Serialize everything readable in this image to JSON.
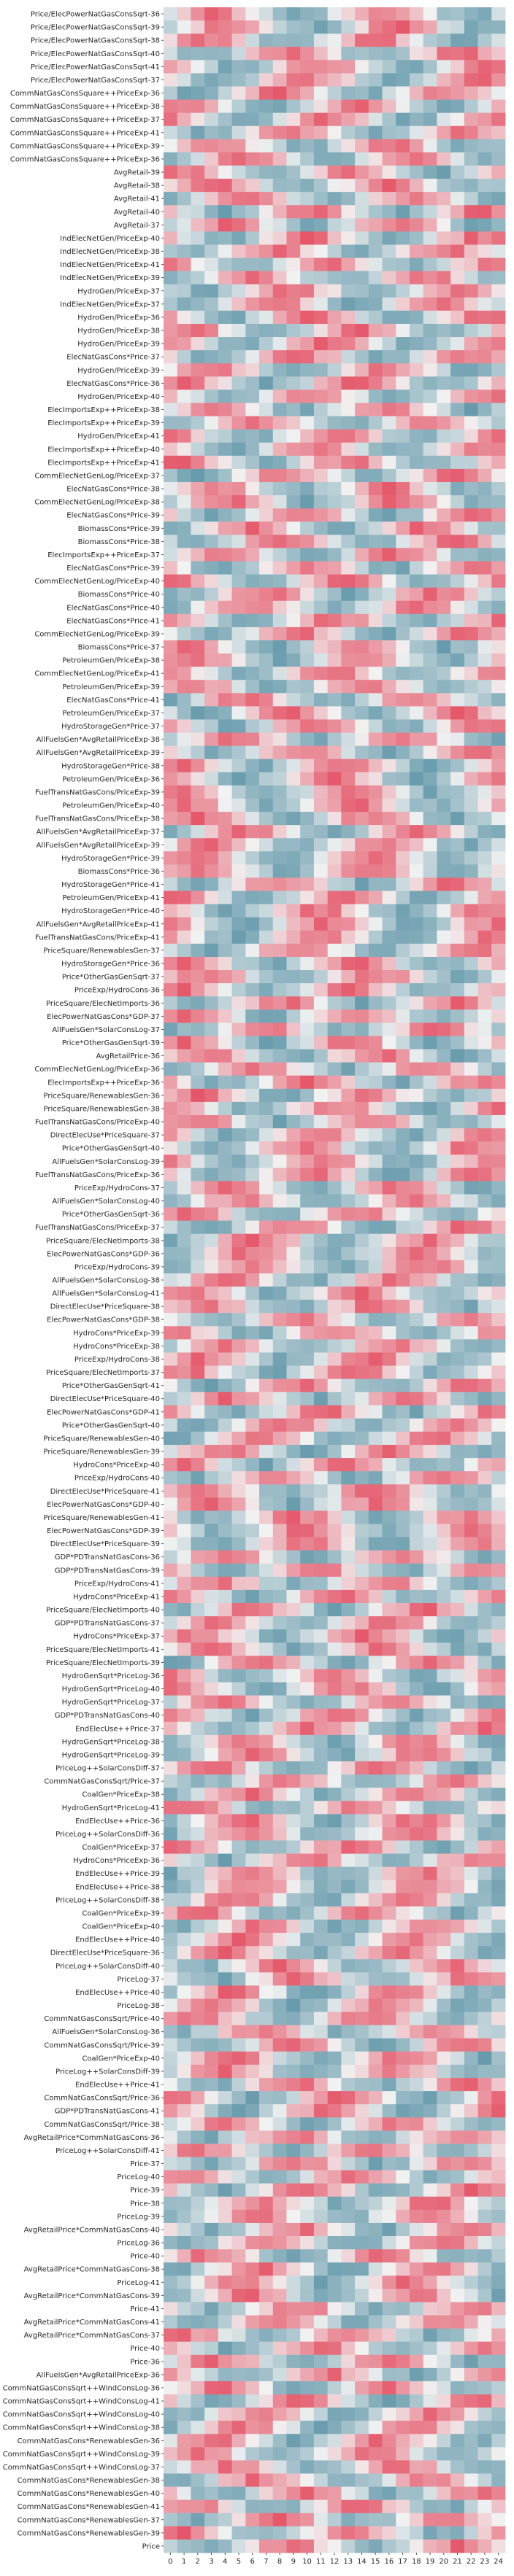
{
  "chart_data": {
    "type": "heatmap",
    "title": "",
    "xlabel": "",
    "ylabel": "",
    "columns": [
      "0",
      "1",
      "2",
      "3",
      "4",
      "5",
      "6",
      "7",
      "8",
      "9",
      "10",
      "11",
      "12",
      "13",
      "14",
      "15",
      "16",
      "17",
      "18",
      "19",
      "20",
      "21",
      "22",
      "23",
      "24"
    ],
    "rows": [
      "Price/ElecPowerNatGasConsSqrt-36",
      "Price/ElecPowerNatGasConsSqrt-39",
      "Price/ElecPowerNatGasConsSqrt-38",
      "Price/ElecPowerNatGasConsSqrt-40",
      "Price/ElecPowerNatGasConsSqrt-41",
      "Price/ElecPowerNatGasConsSqrt-37",
      "CommNatGasConsSquare++PriceExp-36",
      "CommNatGasConsSquare++PriceExp-38",
      "CommNatGasConsSquare++PriceExp-37",
      "CommNatGasConsSquare++PriceExp-41",
      "CommNatGasConsSquare++PriceExp-39",
      "CommNatGasConsSquare++PriceExp-36",
      "AvgRetail-39",
      "AvgRetail-38",
      "AvgRetail-41",
      "AvgRetail-40",
      "AvgRetail-37",
      "IndElecNetGen/PriceExp-40",
      "IndElecNetGen/PriceExp-38",
      "IndElecNetGen/PriceExp-41",
      "IndElecNetGen/PriceExp-39",
      "HydroGen/PriceExp-37",
      "IndElecNetGen/PriceExp-37",
      "HydroGen/PriceExp-36",
      "HydroGen/PriceExp-38",
      "HydroGen/PriceExp-39",
      "ElecNatGasCons*Price-37",
      "HydroGen/PriceExp-39",
      "ElecNatGasCons*Price-36",
      "HydroGen/PriceExp-40",
      "ElecImportsExp++PriceExp-38",
      "ElecImportsExp++PriceExp-39",
      "HydroGen/PriceExp-41",
      "ElecImportsExp++PriceExp-40",
      "ElecImportsExp++PriceExp-41",
      "CommElecNetGenLog/PriceExp-37",
      "ElecNatGasCons*Price-38",
      "CommElecNetGenLog/PriceExp-38",
      "ElecNatGasCons*Price-39",
      "BiomassCons*Price-39",
      "BiomassCons*Price-38",
      "ElecImportsExp++PriceExp-37",
      "ElecNatGasCons*Price-39",
      "CommElecNetGenLog/PriceExp-40",
      "BiomassCons*Price-40",
      "ElecNatGasCons*Price-40",
      "ElecNatGasCons*Price-41",
      "CommElecNetGenLog/PriceExp-39",
      "BiomassCons*Price-37",
      "PetroleumGen/PriceExp-38",
      "CommElecNetGenLog/PriceExp-41",
      "PetroleumGen/PriceExp-39",
      "ElecNatGasCons*Price-41",
      "PetroleumGen/PriceExp-37",
      "HydroStorageGen*Price-37",
      "AllFuelsGen*AvgRetailPriceExp-38",
      "AllFuelsGen*AvgRetailPriceExp-39",
      "HydroStorageGen*Price-38",
      "PetroleumGen/PriceExp-36",
      "FuelTransNatGasCons/PriceExp-39",
      "PetroleumGen/PriceExp-40",
      "FuelTransNatGasCons/PriceExp-38",
      "AllFuelsGen*AvgRetailPriceExp-37",
      "AllFuelsGen*AvgRetailPriceExp-39",
      "HydroStorageGen*Price-39",
      "BiomassCons*Price-36",
      "HydroStorageGen*Price-41",
      "PetroleumGen/PriceExp-41",
      "HydroStorageGen*Price-40",
      "AllFuelsGen*AvgRetailPriceExp-41",
      "FuelTransNatGasCons/PriceExp-41",
      "PriceSquare/RenewablesGen-37",
      "HydroStorageGen*Price-36",
      "Price*OtherGasGenSqrt-37",
      "PriceExp/HydroCons-36",
      "PriceSquare/ElecNetImports-36",
      "ElecPowerNatGasCons*GDP-37",
      "AllFuelsGen*SolarConsLog-37",
      "Price*OtherGasGenSqrt-39",
      "AvgRetailPrice-36",
      "CommElecNetGenLog/PriceExp-36",
      "ElecImportsExp++PriceExp-36",
      "PriceSquare/RenewablesGen-36",
      "PriceSquare/RenewablesGen-38",
      "FuelTransNatGasCons/PriceExp-40",
      "DirectElecUse*PriceSquare-37",
      "Price*OtherGasGenSqrt-40",
      "AllFuelsGen*SolarConsLog-39",
      "FuelTransNatGasCons/PriceExp-36",
      "PriceExp/HydroCons-37",
      "AllFuelsGen*SolarConsLog-40",
      "Price*OtherGasGenSqrt-36",
      "FuelTransNatGasCons/PriceExp-37",
      "PriceSquare/ElecNetImports-38",
      "ElecPowerNatGasCons*GDP-36",
      "PriceExp/HydroCons-39",
      "AllFuelsGen*SolarConsLog-38",
      "AllFuelsGen*SolarConsLog-41",
      "DirectElecUse*PriceSquare-38",
      "ElecPowerNatGasCons*GDP-38",
      "HydroCons*PriceExp-39",
      "HydroCons*PriceExp-38",
      "PriceExp/HydroCons-38",
      "PriceSquare/ElecNetImports-37",
      "Price*OtherGasGenSqrt-41",
      "DirectElecUse*PriceSquare-40",
      "ElecPowerNatGasCons*GDP-41",
      "Price*OtherGasGenSqrt-40",
      "PriceSquare/RenewablesGen-40",
      "PriceSquare/RenewablesGen-39",
      "HydroCons*PriceExp-40",
      "PriceExp/HydroCons-40",
      "DirectElecUse*PriceSquare-41",
      "ElecPowerNatGasCons*GDP-40",
      "PriceSquare/RenewablesGen-41",
      "ElecPowerNatGasCons*GDP-39",
      "DirectElecUse*PriceSquare-39",
      "GDP*PDTransNatGasCons-36",
      "GDP*PDTransNatGasCons-39",
      "PriceExp/HydroCons-41",
      "HydroCons*PriceExp-41",
      "PriceSquare/ElecNetImports-40",
      "GDP*PDTransNatGasCons-37",
      "HydroCons*PriceExp-37",
      "PriceSquare/ElecNetImports-41",
      "PriceSquare/ElecNetImports-39",
      "HydroGenSqrt*PriceLog-36",
      "HydroGenSqrt*PriceLog-40",
      "HydroGenSqrt*PriceLog-37",
      "GDP*PDTransNatGasCons-40",
      "EndElecUse++Price-37",
      "HydroGenSqrt*PriceLog-38",
      "HydroGenSqrt*PriceLog-39",
      "PriceLog++SolarConsDiff-37",
      "CommNatGasConsSqrt/Price-37",
      "CoalGen*PriceExp-38",
      "HydroGenSqrt*PriceLog-41",
      "EndElecUse++Price-36",
      "PriceLog++SolarConsDiff-36",
      "CoalGen*PriceExp-37",
      "HydroCons*PriceExp-36",
      "EndElecUse++Price-39",
      "EndElecUse++Price-38",
      "PriceLog++SolarConsDiff-38",
      "CoalGen*PriceExp-39",
      "CoalGen*PriceExp-40",
      "EndElecUse++Price-40",
      "DirectElecUse*PriceSquare-36",
      "PriceLog++SolarConsDiff-40",
      "PriceLog-37",
      "EndElecUse++Price-40",
      "PriceLog-38",
      "CommNatGasConsSqrt/Price-40",
      "AllFuelsGen*SolarConsLog-36",
      "CommNatGasConsSqrt/Price-39",
      "CoalGen*PriceExp-40",
      "PriceLog++SolarConsDiff-39",
      "EndElecUse++Price-41",
      "CommNatGasConsSqrt/Price-36",
      "GDP*PDTransNatGasCons-41",
      "CommNatGasConsSqrt/Price-38",
      "AvgRetailPrice*CommNatGasCons-36",
      "PriceLog++SolarConsDiff-41",
      "Price-37",
      "PriceLog-40",
      "Price-39",
      "Price-38",
      "PriceLog-39",
      "AvgRetailPrice*CommNatGasCons-40",
      "PriceLog-36",
      "Price-40",
      "AvgRetailPrice*CommNatGasCons-38",
      "PriceLog-41",
      "AvgRetailPrice*CommNatGasCons-39",
      "Price-41",
      "AvgRetailPrice*CommNatGasCons-41",
      "AvgRetailPrice*CommNatGasCons-37",
      "Price-40",
      "Price-36",
      "AllFuelsGen*AvgRetailPriceExp-36",
      "CommNatGasConsSqrt++WindConsLog-36",
      "CommNatGasConsSqrt++WindConsLog-41",
      "CommNatGasConsSqrt++WindConsLog-40",
      "CommNatGasConsSqrt++WindConsLog-38",
      "CommNatGasCons*RenewablesGen-36",
      "CommNatGasConsSqrt++WindConsLog-39",
      "CommNatGasConsSqrt++WindConsLog-37",
      "CommNatGasCons*RenewablesGen-38",
      "CommNatGasCons*RenewablesGen-40",
      "CommNatGasCons*RenewablesGen-41",
      "CommNatGasCons*RenewablesGen-37",
      "CommNatGasCons*RenewablesGen-39",
      "Price"
    ],
    "vmin": -1,
    "vmax": 1,
    "colormap": {
      "low": "#5b93a6",
      "mid": "#f2f2f2",
      "high": "#e34a5e"
    },
    "colorbar": false,
    "cell_borders": false
  }
}
